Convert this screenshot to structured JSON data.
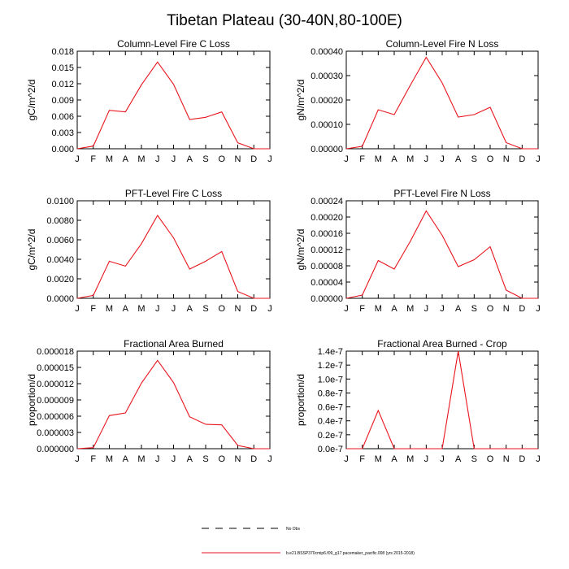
{
  "page_title": "Tibetan Plateau (30-40N,80-100E)",
  "month_labels": [
    "J",
    "F",
    "M",
    "A",
    "M",
    "J",
    "J",
    "A",
    "S",
    "O",
    "N",
    "D",
    "J"
  ],
  "line_color": "#e8141c",
  "chart_data": [
    {
      "type": "line",
      "title": "Column-Level Fire C Loss",
      "ylabel": "gC/m^2/d",
      "ylim": [
        0,
        0.018
      ],
      "yticks": [
        "0.000",
        "0.003",
        "0.006",
        "0.009",
        "0.012",
        "0.015",
        "0.018"
      ],
      "values": [
        0.0,
        0.0005,
        0.0071,
        0.0068,
        0.0118,
        0.016,
        0.0119,
        0.0054,
        0.0058,
        0.0068,
        0.0011,
        0.0,
        0.0
      ]
    },
    {
      "type": "line",
      "title": "Column-Level Fire N Loss",
      "ylabel": "gN/m^2/d",
      "ylim": [
        0,
        0.0004
      ],
      "yticks": [
        "0.00000",
        "0.00010",
        "0.00020",
        "0.00030",
        "0.00040"
      ],
      "values": [
        0.0,
        1e-05,
        0.00016,
        0.00014,
        0.00026,
        0.000375,
        0.00027,
        0.00013,
        0.00014,
        0.00017,
        2.5e-05,
        0.0,
        0.0
      ]
    },
    {
      "type": "line",
      "title": "PFT-Level Fire C Loss",
      "ylabel": "gC/m^2/d",
      "ylim": [
        0,
        0.01
      ],
      "yticks": [
        "0.0000",
        "0.0020",
        "0.0040",
        "0.0060",
        "0.0080",
        "0.0100"
      ],
      "values": [
        0.0,
        0.0003,
        0.0038,
        0.0033,
        0.0056,
        0.0085,
        0.0062,
        0.003,
        0.0038,
        0.0048,
        0.0007,
        0.0,
        0.0
      ]
    },
    {
      "type": "line",
      "title": "PFT-Level Fire N Loss",
      "ylabel": "gN/m^2/d",
      "ylim": [
        0,
        0.00024
      ],
      "yticks": [
        "0.00000",
        "0.00004",
        "0.00008",
        "0.00012",
        "0.00016",
        "0.00020",
        "0.00024"
      ],
      "values": [
        0.0,
        8e-06,
        9.3e-05,
        7.2e-05,
        0.00014,
        0.000215,
        0.000155,
        7.8e-05,
        9.5e-05,
        0.000127,
        2e-05,
        0.0,
        0.0
      ]
    },
    {
      "type": "line",
      "title": "Fractional Area Burned",
      "ylabel": "proportion/d",
      "ylim": [
        0,
        1.8e-05
      ],
      "yticks": [
        "0.000000",
        "0.000003",
        "0.000006",
        "0.000009",
        "0.000012",
        "0.000015",
        "0.000018"
      ],
      "values": [
        0.0,
        2e-07,
        6.1e-06,
        6.6e-06,
        1.21e-05,
        1.63e-05,
        1.22e-05,
        5.9e-06,
        4.5e-06,
        4.4e-06,
        6e-07,
        0.0,
        0.0
      ]
    },
    {
      "type": "line",
      "title": "Fractional Area Burned - Crop",
      "ylabel": "proportion/d",
      "ylim": [
        0,
        1.4e-07
      ],
      "yticks": [
        "0.0e-7",
        "0.2e-7",
        "0.4e-7",
        "0.6e-7",
        "0.8e-7",
        "1.0e-7",
        "1.2e-7",
        "1.4e-7"
      ],
      "values": [
        0,
        0,
        5.5e-08,
        0,
        0,
        0,
        0,
        1.4e-07,
        0,
        0,
        0,
        0,
        0
      ]
    }
  ],
  "legend": {
    "items": [
      {
        "style": "dashed",
        "color": "#000000",
        "label": "No Obs"
      },
      {
        "style": "solid",
        "color": "#e8141c",
        "label": "b.e21.BSSP370cmip6.f09_g17.pacemaker_pacific.008 (yrs 2015-2018)"
      }
    ]
  }
}
